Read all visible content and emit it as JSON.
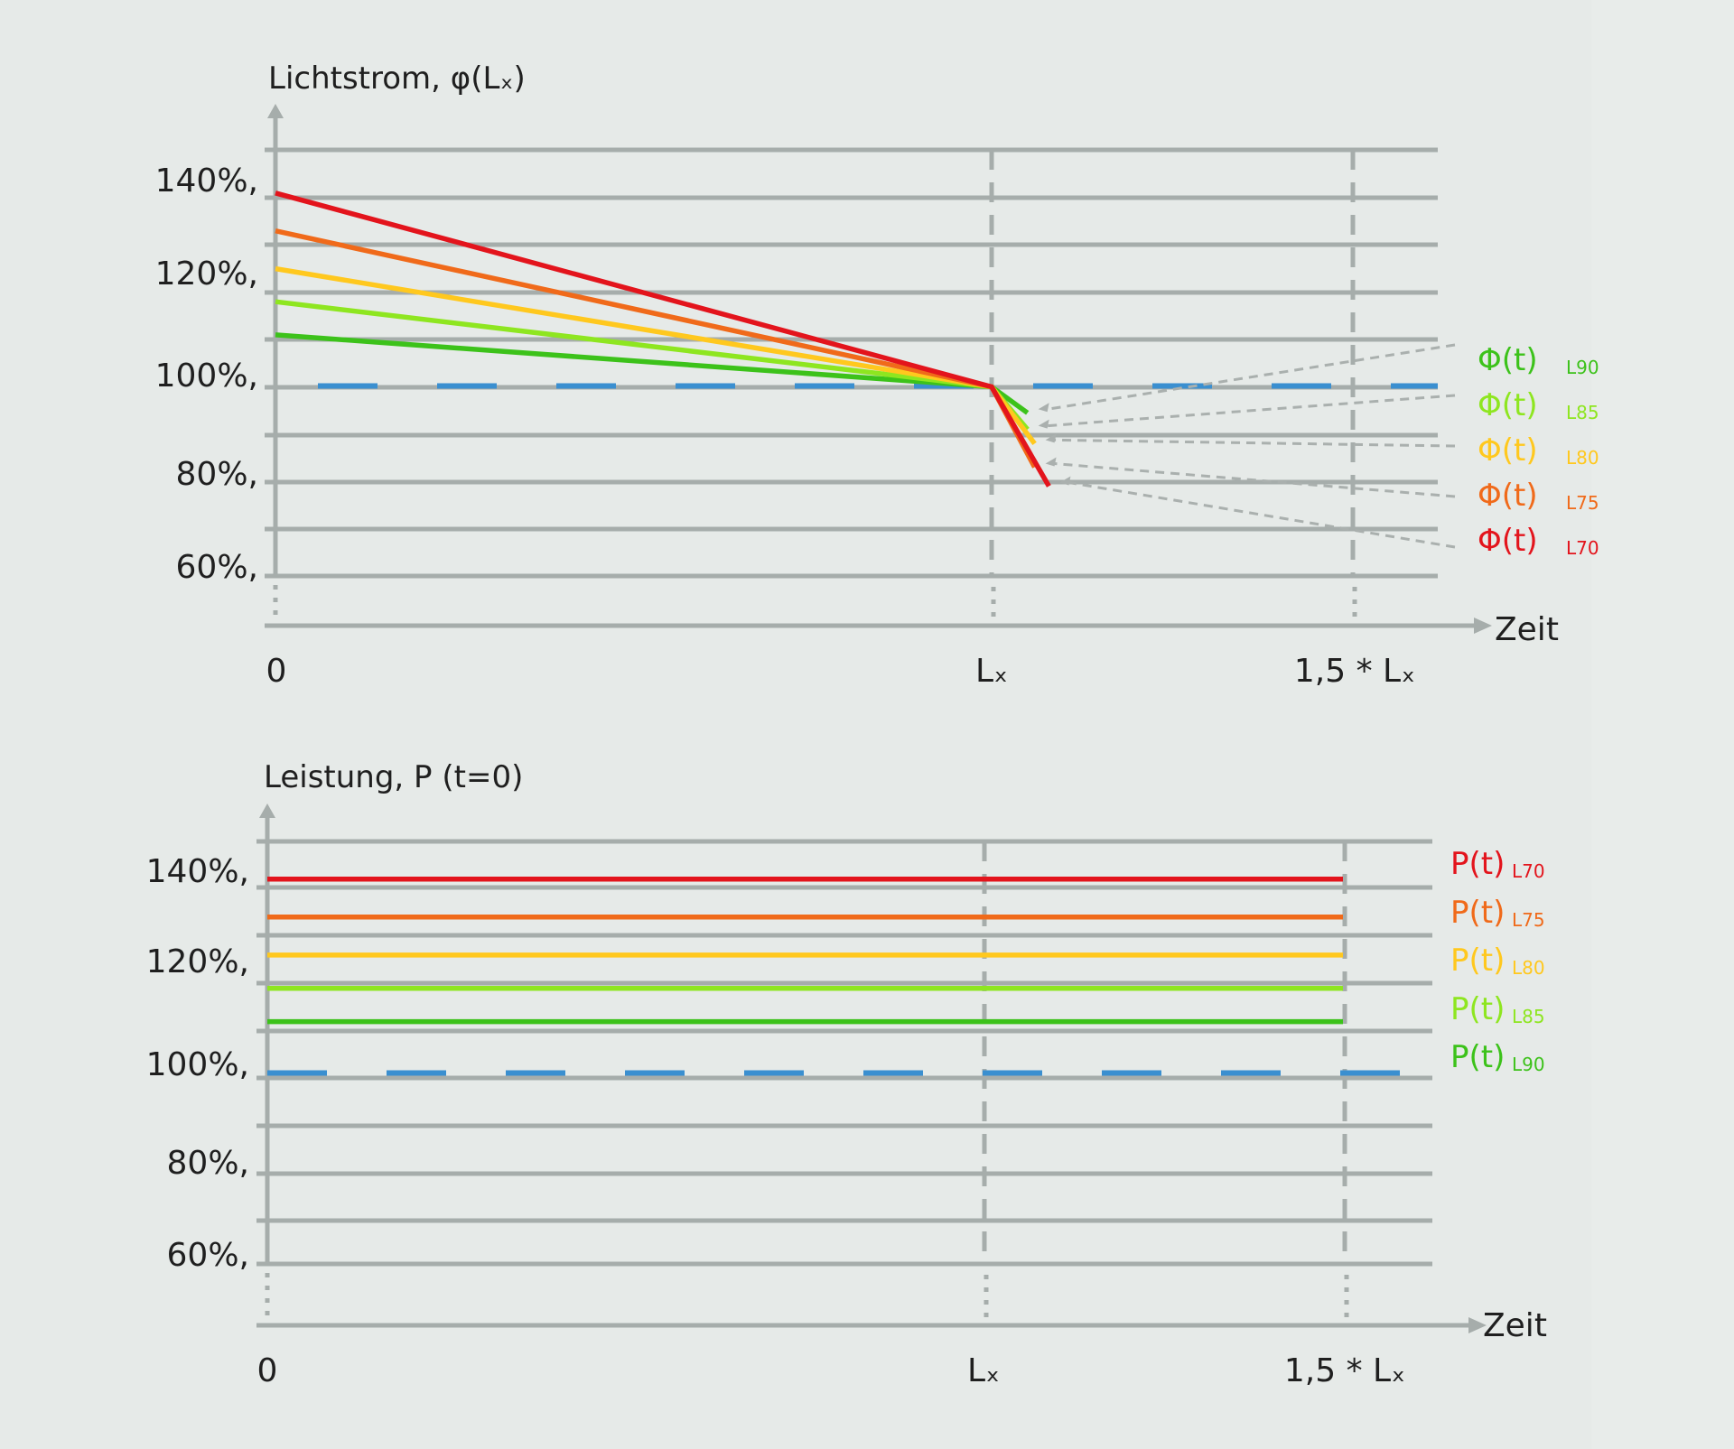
{
  "chart_data": [
    {
      "type": "line",
      "title": "Lichtstrom, φ(Lₓ)",
      "xlabel": "Zeit",
      "x_ticks": [
        "0",
        "Lₓ",
        "1,5 * Lₓ"
      ],
      "y_ticks": [
        "140%,",
        "120%,",
        "100%,",
        "80%,",
        "60%,"
      ],
      "ylim": [
        60,
        155
      ],
      "grid": true,
      "baseline": {
        "y": 100,
        "color": "#3a8fd0"
      },
      "series": [
        {
          "name": "Φ(t)",
          "sub": "L90",
          "color": "#3cc21a",
          "x": [
            0,
            1,
            1.05
          ],
          "y": [
            111,
            100,
            94.5
          ]
        },
        {
          "name": "Φ(t)",
          "sub": "L85",
          "color": "#8ee620",
          "x": [
            0,
            1,
            1.05
          ],
          "y": [
            118,
            100,
            91
          ]
        },
        {
          "name": "Φ(t)",
          "sub": "L80",
          "color": "#ffc81e",
          "x": [
            0,
            1,
            1.06
          ],
          "y": [
            125,
            100,
            88
          ]
        },
        {
          "name": "Φ(t)",
          "sub": "L75",
          "color": "#f06a1a",
          "x": [
            0,
            1,
            1.06
          ],
          "y": [
            133,
            100,
            83
          ]
        },
        {
          "name": "Φ(t)",
          "sub": "L70",
          "color": "#e3141c",
          "x": [
            0,
            1,
            1.08
          ],
          "y": [
            141,
            100,
            79
          ]
        }
      ]
    },
    {
      "type": "line",
      "title": "Leistung, P (t=0)",
      "xlabel": "Zeit",
      "x_ticks": [
        "0",
        "Lₓ",
        "1,5 * Lₓ"
      ],
      "y_ticks": [
        "140%,",
        "120%,",
        "100%,",
        "80%,",
        "60%,"
      ],
      "ylim": [
        60,
        155
      ],
      "grid": true,
      "baseline": {
        "y": 100,
        "color": "#3a8fd0"
      },
      "series": [
        {
          "name": "P(t)",
          "sub": "L70",
          "color": "#e3141c",
          "x": [
            0,
            1.5
          ],
          "y": [
            141,
            141
          ]
        },
        {
          "name": "P(t)",
          "sub": "L75",
          "color": "#f06a1a",
          "x": [
            0,
            1.5
          ],
          "y": [
            133,
            133
          ]
        },
        {
          "name": "P(t)",
          "sub": "L80",
          "color": "#ffc81e",
          "x": [
            0,
            1.5
          ],
          "y": [
            125,
            125
          ]
        },
        {
          "name": "P(t)",
          "sub": "L85",
          "color": "#8ee620",
          "x": [
            0,
            1.5
          ],
          "y": [
            118,
            118
          ]
        },
        {
          "name": "P(t)",
          "sub": "L90",
          "color": "#3cc21a",
          "x": [
            0,
            1.5
          ],
          "y": [
            111,
            111
          ]
        }
      ]
    }
  ]
}
